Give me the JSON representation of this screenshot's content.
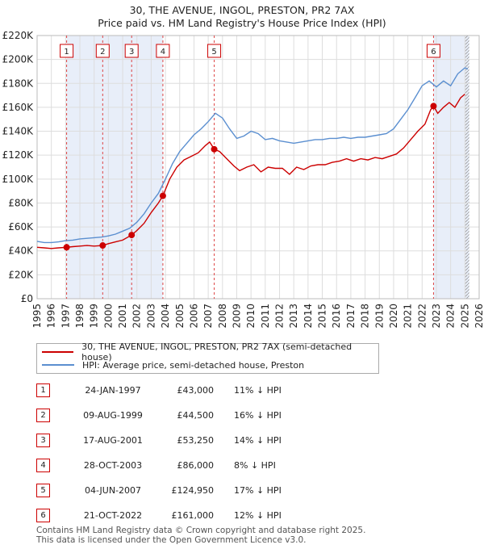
{
  "chart_data": {
    "type": "line",
    "title": "30, THE AVENUE, INGOL, PRESTON, PR2 7AX",
    "subtitle": "Price paid vs. HM Land Registry's House Price Index (HPI)",
    "xlim": [
      1995,
      2026
    ],
    "ylim": [
      0,
      220000
    ],
    "x_ticks": [
      "1995",
      "1996",
      "1997",
      "1998",
      "1999",
      "2000",
      "2001",
      "2002",
      "2003",
      "2004",
      "2005",
      "2006",
      "2007",
      "2008",
      "2009",
      "2010",
      "2011",
      "2012",
      "2013",
      "2014",
      "2015",
      "2016",
      "2017",
      "2018",
      "2019",
      "2020",
      "2021",
      "2022",
      "2023",
      "2024",
      "2025",
      "2026"
    ],
    "y_ticks": [
      "£0",
      "£20K",
      "£40K",
      "£60K",
      "£80K",
      "£100K",
      "£120K",
      "£140K",
      "£160K",
      "£180K",
      "£200K",
      "£220K"
    ],
    "grid": true,
    "legend_position": "below",
    "series": [
      {
        "name": "30, THE AVENUE, INGOL, PRESTON, PR2 7AX (semi-detached house)",
        "color": "#cc0000",
        "points": [
          [
            1995.0,
            43000
          ],
          [
            1995.5,
            42500
          ],
          [
            1996.0,
            42000
          ],
          [
            1996.5,
            42500
          ],
          [
            1997.07,
            43000
          ],
          [
            1997.5,
            43500
          ],
          [
            1998.0,
            44000
          ],
          [
            1998.5,
            44500
          ],
          [
            1999.0,
            44000
          ],
          [
            1999.6,
            44500
          ],
          [
            2000.0,
            46000
          ],
          [
            2000.5,
            47500
          ],
          [
            2001.0,
            49000
          ],
          [
            2001.63,
            53250
          ],
          [
            2002.0,
            57000
          ],
          [
            2002.5,
            63000
          ],
          [
            2003.0,
            72000
          ],
          [
            2003.5,
            80000
          ],
          [
            2003.82,
            86000
          ],
          [
            2004.3,
            100000
          ],
          [
            2004.8,
            110000
          ],
          [
            2005.3,
            116000
          ],
          [
            2005.8,
            119000
          ],
          [
            2006.3,
            122000
          ],
          [
            2006.8,
            128000
          ],
          [
            2007.1,
            131000
          ],
          [
            2007.42,
            124950
          ],
          [
            2007.8,
            123000
          ],
          [
            2008.3,
            117000
          ],
          [
            2008.8,
            111000
          ],
          [
            2009.2,
            107000
          ],
          [
            2009.7,
            110000
          ],
          [
            2010.2,
            112000
          ],
          [
            2010.7,
            106000
          ],
          [
            2011.2,
            110000
          ],
          [
            2011.7,
            109000
          ],
          [
            2012.2,
            109000
          ],
          [
            2012.7,
            104000
          ],
          [
            2013.2,
            110000
          ],
          [
            2013.7,
            108000
          ],
          [
            2014.2,
            111000
          ],
          [
            2014.7,
            112000
          ],
          [
            2015.2,
            112000
          ],
          [
            2015.7,
            114000
          ],
          [
            2016.2,
            115000
          ],
          [
            2016.7,
            117000
          ],
          [
            2017.2,
            115000
          ],
          [
            2017.7,
            117000
          ],
          [
            2018.2,
            116000
          ],
          [
            2018.7,
            118000
          ],
          [
            2019.2,
            117000
          ],
          [
            2019.7,
            119000
          ],
          [
            2020.2,
            121000
          ],
          [
            2020.7,
            126000
          ],
          [
            2021.2,
            133000
          ],
          [
            2021.7,
            140000
          ],
          [
            2022.2,
            146000
          ],
          [
            2022.6,
            158000
          ],
          [
            2022.8,
            161000
          ],
          [
            2023.1,
            155000
          ],
          [
            2023.5,
            160000
          ],
          [
            2023.9,
            164000
          ],
          [
            2024.3,
            160000
          ],
          [
            2024.7,
            168000
          ],
          [
            2025.0,
            171000
          ]
        ]
      },
      {
        "name": "HPI: Average price, semi-detached house, Preston",
        "color": "#5b8fd0",
        "points": [
          [
            1995.0,
            48000
          ],
          [
            1995.5,
            47000
          ],
          [
            1996.0,
            47000
          ],
          [
            1996.5,
            47500
          ],
          [
            1997.0,
            48500
          ],
          [
            1997.5,
            49000
          ],
          [
            1998.0,
            50000
          ],
          [
            1998.5,
            50500
          ],
          [
            1999.0,
            51000
          ],
          [
            1999.5,
            51500
          ],
          [
            2000.0,
            52500
          ],
          [
            2000.5,
            54000
          ],
          [
            2001.0,
            56500
          ],
          [
            2001.5,
            59000
          ],
          [
            2002.0,
            64000
          ],
          [
            2002.5,
            71000
          ],
          [
            2003.0,
            80000
          ],
          [
            2003.5,
            88000
          ],
          [
            2004.0,
            100000
          ],
          [
            2004.5,
            113000
          ],
          [
            2005.0,
            123000
          ],
          [
            2005.5,
            130000
          ],
          [
            2006.0,
            137000
          ],
          [
            2006.5,
            142000
          ],
          [
            2007.0,
            148000
          ],
          [
            2007.5,
            155000
          ],
          [
            2008.0,
            151000
          ],
          [
            2008.5,
            142000
          ],
          [
            2009.0,
            134000
          ],
          [
            2009.5,
            136000
          ],
          [
            2010.0,
            140000
          ],
          [
            2010.5,
            138000
          ],
          [
            2011.0,
            133000
          ],
          [
            2011.5,
            134000
          ],
          [
            2012.0,
            132000
          ],
          [
            2012.5,
            131000
          ],
          [
            2013.0,
            130000
          ],
          [
            2013.5,
            131000
          ],
          [
            2014.0,
            132000
          ],
          [
            2014.5,
            133000
          ],
          [
            2015.0,
            133000
          ],
          [
            2015.5,
            134000
          ],
          [
            2016.0,
            134000
          ],
          [
            2016.5,
            135000
          ],
          [
            2017.0,
            134000
          ],
          [
            2017.5,
            135000
          ],
          [
            2018.0,
            135000
          ],
          [
            2018.5,
            136000
          ],
          [
            2019.0,
            137000
          ],
          [
            2019.5,
            138000
          ],
          [
            2020.0,
            142000
          ],
          [
            2020.5,
            150000
          ],
          [
            2021.0,
            158000
          ],
          [
            2021.5,
            168000
          ],
          [
            2022.0,
            178000
          ],
          [
            2022.5,
            182000
          ],
          [
            2023.0,
            177000
          ],
          [
            2023.5,
            182000
          ],
          [
            2024.0,
            178000
          ],
          [
            2024.5,
            188000
          ],
          [
            2025.0,
            193000
          ],
          [
            2025.2,
            192000
          ]
        ]
      }
    ],
    "sales": [
      {
        "num": "1",
        "x": 1997.07,
        "price": 43000
      },
      {
        "num": "2",
        "x": 1999.6,
        "price": 44500
      },
      {
        "num": "3",
        "x": 2001.63,
        "price": 53250
      },
      {
        "num": "4",
        "x": 2003.82,
        "price": 86000
      },
      {
        "num": "5",
        "x": 2007.42,
        "price": 124950
      },
      {
        "num": "6",
        "x": 2022.8,
        "price": 161000
      }
    ],
    "shaded_ranges": [
      [
        1997.07,
        2003.82
      ],
      [
        2022.8,
        2025.3
      ]
    ],
    "hatched_from": 2025.0
  },
  "legend": {
    "property": "30, THE AVENUE, INGOL, PRESTON, PR2 7AX (semi-detached house)",
    "hpi": "HPI: Average price, semi-detached house, Preston"
  },
  "sales_table": [
    {
      "num": "1",
      "date": "24-JAN-1997",
      "price": "£43,000",
      "hpi": "11% ↓ HPI"
    },
    {
      "num": "2",
      "date": "09-AUG-1999",
      "price": "£44,500",
      "hpi": "16% ↓ HPI"
    },
    {
      "num": "3",
      "date": "17-AUG-2001",
      "price": "£53,250",
      "hpi": "14% ↓ HPI"
    },
    {
      "num": "4",
      "date": "28-OCT-2003",
      "price": "£86,000",
      "hpi": "8% ↓ HPI"
    },
    {
      "num": "5",
      "date": "04-JUN-2007",
      "price": "£124,950",
      "hpi": "17% ↓ HPI"
    },
    {
      "num": "6",
      "date": "21-OCT-2022",
      "price": "£161,000",
      "hpi": "12% ↓ HPI"
    }
  ],
  "footer": {
    "line1": "Contains HM Land Registry data © Crown copyright and database right 2025.",
    "line2": "This data is licensed under the Open Government Licence v3.0."
  }
}
